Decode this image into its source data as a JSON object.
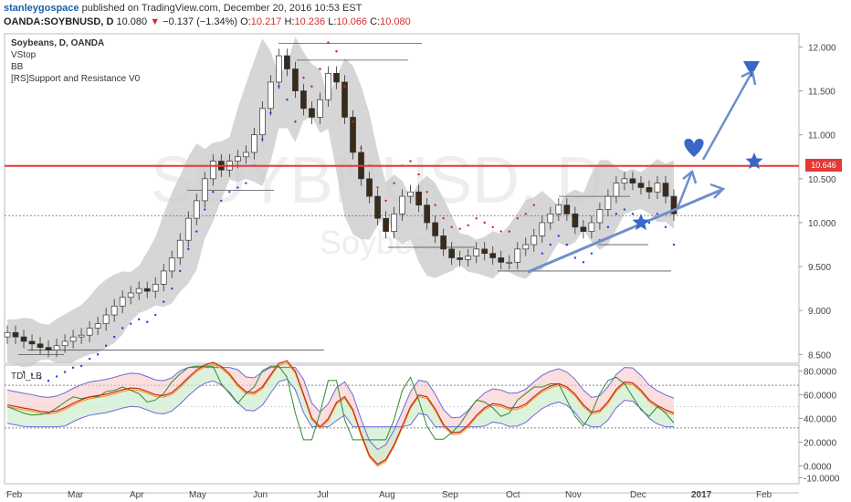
{
  "header": {
    "author": "stanleygospace",
    "published": "published on TradingView.com, December 20, 2016 10:53 EST",
    "symbol": "OANDA:SOYBNUSD, D",
    "last": "10.080",
    "change": "−0.137 (−1.34%)",
    "open_label": "O:",
    "open": "10.217",
    "high_label": "H:",
    "high": "10.236",
    "low_label": "L:",
    "low": "10.066",
    "close_label": "C:",
    "close": "10.080"
  },
  "legend": {
    "title": "Soybeans, D, OANDA",
    "items": [
      "VStop",
      "BB",
      "[RS]Support and Resistance V0"
    ]
  },
  "watermark": {
    "symbol": "SOYBNUSD, D",
    "name": "Soybeans"
  },
  "price_tag": "10.646",
  "colors": {
    "up": "#ffffff",
    "down": "#3a2a1a",
    "resistance": "#e53935",
    "annotation": "#6f8fca",
    "bb": "#cccccc",
    "vstop_down": "#c62828",
    "vstop_up": "#1e40e0"
  },
  "chart_data": [
    {
      "type": "candlestick",
      "title": "Soybeans, D, OANDA",
      "x_ticks": [
        "Feb",
        "Mar",
        "Apr",
        "May",
        "Jun",
        "Jul",
        "Aug",
        "Sep",
        "Oct",
        "Nov",
        "Dec",
        "2017",
        "Feb"
      ],
      "y_ticks": [
        "12.000",
        "11.500",
        "11.000",
        "10.500",
        "10.000",
        "9.500",
        "9.000",
        "8.500"
      ],
      "ylim": [
        8.4,
        12.15
      ],
      "resistance_level": 10.646,
      "close_series": [
        8.75,
        8.7,
        8.65,
        8.62,
        8.58,
        8.55,
        8.6,
        8.65,
        8.7,
        8.72,
        8.8,
        8.85,
        8.95,
        9.05,
        9.15,
        9.2,
        9.25,
        9.22,
        9.3,
        9.45,
        9.6,
        9.8,
        10.05,
        10.25,
        10.5,
        10.7,
        10.6,
        10.7,
        10.75,
        10.8,
        11.0,
        11.3,
        11.6,
        11.9,
        11.75,
        11.5,
        11.3,
        11.2,
        11.4,
        11.7,
        11.6,
        11.2,
        10.8,
        10.5,
        10.3,
        10.05,
        9.9,
        10.1,
        10.3,
        10.35,
        10.2,
        10.0,
        9.85,
        9.7,
        9.6,
        9.58,
        9.62,
        9.7,
        9.65,
        9.6,
        9.55,
        9.55,
        9.7,
        9.75,
        9.85,
        10.0,
        10.1,
        10.2,
        10.1,
        9.95,
        9.9,
        10.0,
        10.15,
        10.3,
        10.45,
        10.5,
        10.45,
        10.4,
        10.35,
        10.45,
        10.3,
        10.1
      ],
      "panels": [
        {
          "name": "TDI_LB",
          "y_ticks": [
            "80.0000",
            "60.0000",
            "40.0000",
            "20.0000",
            "0.0000",
            "-10.0000"
          ],
          "ylim": [
            -15,
            85
          ]
        }
      ]
    }
  ]
}
